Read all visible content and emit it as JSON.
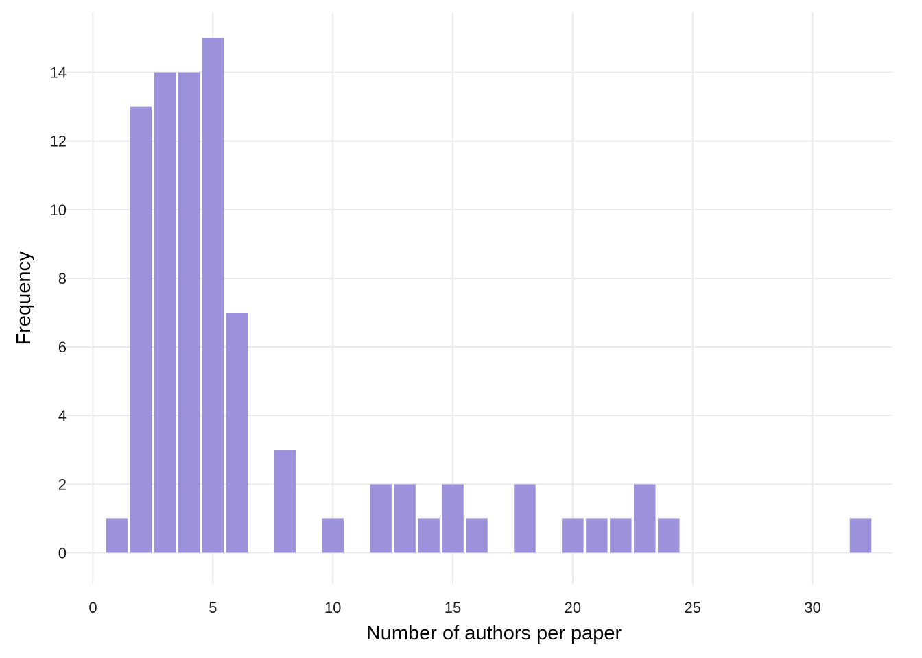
{
  "chart_data": {
    "type": "bar",
    "title": "",
    "xlabel": "Number of authors per paper",
    "ylabel": "Frequency",
    "x": [
      1,
      2,
      3,
      4,
      5,
      6,
      8,
      10,
      12,
      13,
      14,
      15,
      16,
      18,
      20,
      21,
      22,
      23,
      24,
      32
    ],
    "values": [
      1,
      13,
      14,
      14,
      15,
      7,
      3,
      1,
      2,
      2,
      1,
      2,
      1,
      2,
      1,
      1,
      1,
      2,
      1,
      1
    ],
    "xlim": [
      -0.9,
      33.3
    ],
    "ylim": [
      -0.75,
      15.75
    ],
    "x_ticks": [
      0,
      5,
      10,
      15,
      20,
      25,
      30
    ],
    "y_ticks": [
      0,
      2,
      4,
      6,
      8,
      10,
      12,
      14
    ],
    "x_tick_labels": [
      "0",
      "5",
      "10",
      "15",
      "20",
      "25",
      "30"
    ],
    "y_tick_labels": [
      "0",
      "2",
      "4",
      "6",
      "8",
      "10",
      "12",
      "14"
    ],
    "grid": true,
    "legend": "none",
    "bar_color": "#9b92db",
    "grid_color": "#ebebeb"
  }
}
